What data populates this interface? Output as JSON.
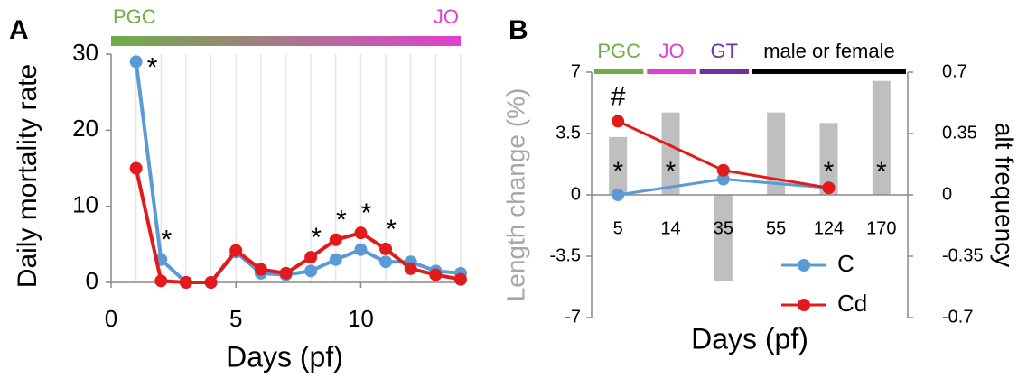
{
  "chart_data": [
    {
      "type": "line",
      "panel": "A",
      "xlabel": "Days (pf)",
      "ylabel": "Daily mortality rate",
      "x": [
        1,
        2,
        3,
        4,
        5,
        6,
        7,
        8,
        9,
        10,
        11,
        12,
        13,
        14
      ],
      "series": [
        {
          "color": "#5b9bd5",
          "values": [
            29,
            3,
            0,
            0,
            4,
            1.2,
            1,
            1.5,
            3,
            4.3,
            2.7,
            2.7,
            1.5,
            1.2
          ]
        },
        {
          "color": "#e31a1c",
          "values": [
            15,
            0.2,
            0,
            0,
            4.2,
            1.7,
            1.2,
            3.3,
            5.6,
            6.5,
            4.4,
            1.8,
            1,
            0.4
          ]
        }
      ],
      "xlim": [
        0,
        14
      ],
      "xticks": [
        0,
        5,
        10
      ],
      "ylim": [
        0,
        30
      ],
      "yticks": [
        0,
        10,
        20,
        30
      ],
      "grid": "x",
      "stages": [
        {
          "label": "PGC",
          "color": "#70ad47"
        },
        {
          "label": "JO",
          "color": "#e040d0"
        }
      ],
      "annotations": [
        {
          "text": "*",
          "x": 1
        },
        {
          "text": "*",
          "x": 2
        },
        {
          "text": "*",
          "x": 8
        },
        {
          "text": "*",
          "x": 9
        },
        {
          "text": "*",
          "x": 10
        },
        {
          "text": "*",
          "x": 11
        }
      ]
    },
    {
      "type": "bar-line",
      "panel": "B",
      "xlabel": "Days (pf)",
      "ylabel": "Length change (%)",
      "y2label": "alt frequency",
      "categories": [
        "5",
        "14",
        "35",
        "55",
        "124",
        "170"
      ],
      "bars": {
        "color": "#bfbfbf",
        "axis": "y2",
        "values": [
          0.33,
          0.47,
          -0.49,
          0.47,
          0.41,
          0.65
        ]
      },
      "series": [
        {
          "name": "C",
          "color": "#5b9bd5",
          "values": [
            0,
            null,
            0.9,
            null,
            0.4,
            null
          ]
        },
        {
          "name": "Cd",
          "color": "#e31a1c",
          "values": [
            4.2,
            null,
            1.4,
            null,
            0.4,
            null
          ]
        }
      ],
      "ylim": [
        -7,
        7
      ],
      "yticks": [
        -7,
        -3.5,
        0,
        3.5,
        7
      ],
      "y2lim": [
        -0.7,
        0.7
      ],
      "y2ticks": [
        -0.7,
        -0.35,
        0,
        0.35,
        0.7
      ],
      "legend": "bottom-right",
      "stages": [
        {
          "label": "PGC",
          "color": "#70ad47"
        },
        {
          "label": "JO",
          "color": "#e040d0"
        },
        {
          "label": "GT",
          "color": "#7030a0"
        },
        {
          "label": "male or female",
          "color": "#000000"
        }
      ],
      "annotations": [
        {
          "text": "#",
          "x": "5",
          "series": "Cd"
        },
        {
          "text": "*",
          "x": "5"
        },
        {
          "text": "*",
          "x": "14"
        },
        {
          "text": "*",
          "x": "124"
        },
        {
          "text": "*",
          "x": "170"
        }
      ]
    }
  ]
}
